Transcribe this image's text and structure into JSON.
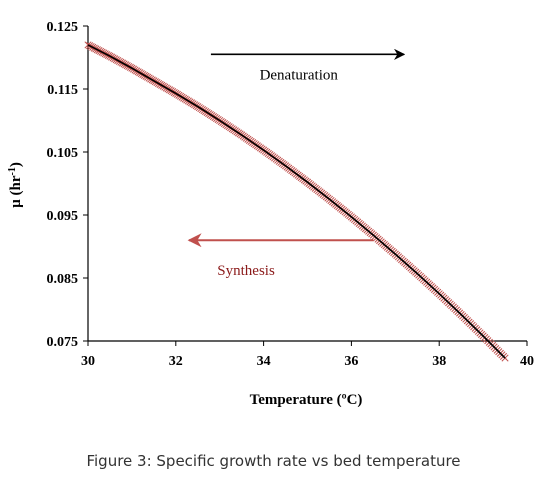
{
  "chart_data": {
    "type": "scatter",
    "xlabel": "Temperature (ºC)",
    "ylabel_main": "µ (hr",
    "ylabel_sup": "-1",
    "ylabel_end": ")",
    "xlim": [
      30,
      40
    ],
    "ylim": [
      0.075,
      0.125
    ],
    "xticks": [
      30,
      32,
      34,
      36,
      38,
      40
    ],
    "yticks": [
      "0.075",
      "0.085",
      "0.095",
      "0.105",
      "0.115",
      "0.125"
    ],
    "grid": false,
    "curve_points": [
      [
        30.0,
        0.122
      ],
      [
        30.5,
        0.1202
      ],
      [
        31.0,
        0.1183
      ],
      [
        31.5,
        0.1163
      ],
      [
        32.0,
        0.1143
      ],
      [
        32.5,
        0.1122
      ],
      [
        33.0,
        0.11
      ],
      [
        33.5,
        0.1077
      ],
      [
        34.0,
        0.1053
      ],
      [
        34.5,
        0.1028
      ],
      [
        35.0,
        0.1002
      ],
      [
        35.5,
        0.0975
      ],
      [
        36.0,
        0.0947
      ],
      [
        36.5,
        0.0918
      ],
      [
        37.0,
        0.0888
      ],
      [
        37.5,
        0.0857
      ],
      [
        38.0,
        0.0825
      ],
      [
        38.5,
        0.0792
      ],
      [
        39.0,
        0.0758
      ],
      [
        39.5,
        0.0723
      ]
    ],
    "colors": {
      "curve": "#000000",
      "markers": "#c0504d",
      "denaturation_arrow": "#000000",
      "synthesis_arrow": "#c0504d",
      "synthesis_text": "#8b1a1a"
    },
    "annotations": {
      "denaturation": {
        "text": "Denaturation",
        "arrow_from": [
          32.8,
          0.1205
        ],
        "arrow_to": [
          37.2,
          0.1205
        ],
        "label_at": [
          34.8,
          0.1165
        ]
      },
      "synthesis": {
        "text": "Synthesis",
        "arrow_from": [
          36.5,
          0.091
        ],
        "arrow_to": [
          32.3,
          0.091
        ],
        "label_at": [
          33.6,
          0.0855
        ]
      }
    }
  },
  "caption": "Figure 3: Specific growth rate vs bed temperature"
}
